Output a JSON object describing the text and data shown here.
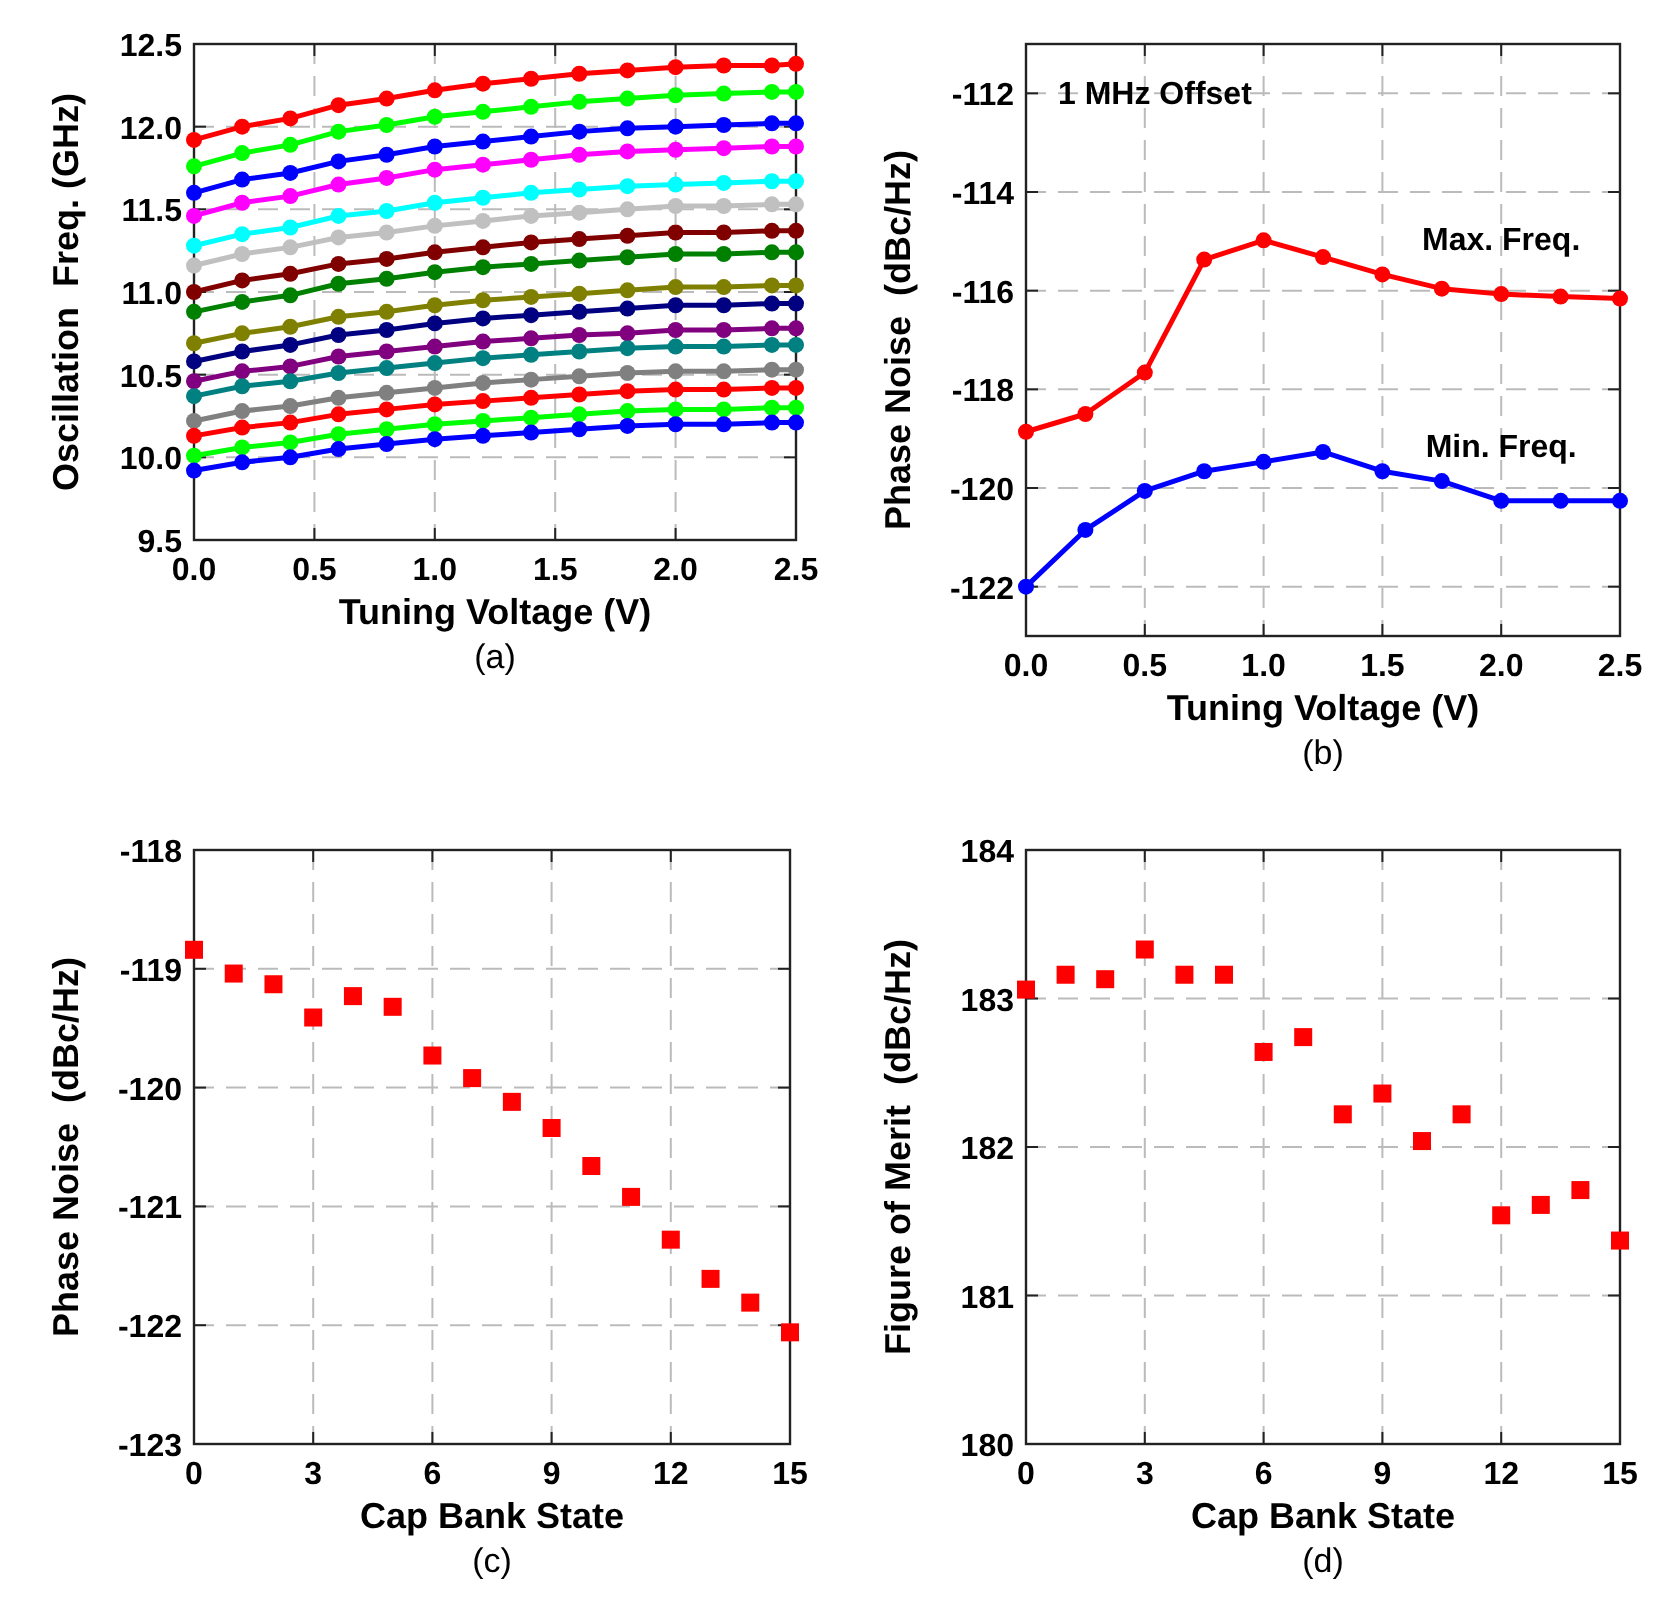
{
  "chart_data": [
    {
      "type": "line",
      "xlabel": "Tuning Voltage (V)",
      "ylabel": "Oscillation  Freq. (GHz)",
      "annotations": [
        "(a)"
      ],
      "marker": "circle",
      "grid": true,
      "xlim": [
        0,
        2.5
      ],
      "ylim": [
        9.5,
        12.5
      ],
      "xticks": [
        {
          "value": 0,
          "label": "0.0"
        },
        {
          "value": 0.5,
          "label": "0.5"
        },
        {
          "value": 1,
          "label": "1.0"
        },
        {
          "value": 1.5,
          "label": "1.5"
        },
        {
          "value": 2,
          "label": "2.0"
        },
        {
          "value": 2.5,
          "label": "2.5"
        }
      ],
      "yticks": [
        {
          "value": 9.5,
          "label": "9.5"
        },
        {
          "value": 10,
          "label": "10.0"
        },
        {
          "value": 10.5,
          "label": "10.5"
        },
        {
          "value": 11,
          "label": "11.0"
        },
        {
          "value": 11.5,
          "label": "11.5"
        },
        {
          "value": 12,
          "label": "12.0"
        },
        {
          "value": 12.5,
          "label": "12.5"
        }
      ],
      "x": [
        0,
        0.2,
        0.4,
        0.6,
        0.8,
        1.0,
        1.2,
        1.4,
        1.6,
        1.8,
        2.0,
        2.2,
        2.4,
        2.5
      ],
      "series": [
        {
          "color": "#ff0000",
          "values": [
            11.92,
            12.0,
            12.05,
            12.13,
            12.17,
            12.22,
            12.26,
            12.29,
            12.32,
            12.34,
            12.36,
            12.37,
            12.37,
            12.38
          ]
        },
        {
          "color": "#00ff00",
          "values": [
            11.76,
            11.84,
            11.89,
            11.97,
            12.01,
            12.06,
            12.09,
            12.12,
            12.15,
            12.17,
            12.19,
            12.2,
            12.21,
            12.21
          ]
        },
        {
          "color": "#0000ff",
          "values": [
            11.6,
            11.68,
            11.72,
            11.79,
            11.83,
            11.88,
            11.91,
            11.94,
            11.97,
            11.99,
            12.0,
            12.01,
            12.02,
            12.02
          ]
        },
        {
          "color": "#ff00ff",
          "values": [
            11.46,
            11.54,
            11.58,
            11.65,
            11.69,
            11.74,
            11.77,
            11.8,
            11.83,
            11.85,
            11.86,
            11.87,
            11.88,
            11.88
          ]
        },
        {
          "color": "#00ffff",
          "values": [
            11.28,
            11.35,
            11.39,
            11.46,
            11.49,
            11.54,
            11.57,
            11.6,
            11.62,
            11.64,
            11.65,
            11.66,
            11.67,
            11.67
          ]
        },
        {
          "color": "#c0c0c0",
          "values": [
            11.16,
            11.23,
            11.27,
            11.33,
            11.36,
            11.4,
            11.43,
            11.46,
            11.48,
            11.5,
            11.52,
            11.52,
            11.53,
            11.53
          ]
        },
        {
          "color": "#800000",
          "values": [
            11.0,
            11.07,
            11.11,
            11.17,
            11.2,
            11.24,
            11.27,
            11.3,
            11.32,
            11.34,
            11.36,
            11.36,
            11.37,
            11.37
          ]
        },
        {
          "color": "#008000",
          "values": [
            10.88,
            10.94,
            10.98,
            11.05,
            11.08,
            11.12,
            11.15,
            11.17,
            11.19,
            11.21,
            11.23,
            11.23,
            11.24,
            11.24
          ]
        },
        {
          "color": "#808000",
          "values": [
            10.69,
            10.75,
            10.79,
            10.85,
            10.88,
            10.92,
            10.95,
            10.97,
            10.99,
            11.01,
            11.03,
            11.03,
            11.04,
            11.04
          ]
        },
        {
          "color": "#000080",
          "values": [
            10.58,
            10.64,
            10.68,
            10.74,
            10.77,
            10.81,
            10.84,
            10.86,
            10.88,
            10.9,
            10.92,
            10.92,
            10.93,
            10.93
          ]
        },
        {
          "color": "#800080",
          "values": [
            10.46,
            10.52,
            10.55,
            10.61,
            10.64,
            10.67,
            10.7,
            10.72,
            10.74,
            10.75,
            10.77,
            10.77,
            10.78,
            10.78
          ]
        },
        {
          "color": "#008080",
          "values": [
            10.37,
            10.43,
            10.46,
            10.51,
            10.54,
            10.57,
            10.6,
            10.62,
            10.64,
            10.66,
            10.67,
            10.67,
            10.68,
            10.68
          ]
        },
        {
          "color": "#808080",
          "values": [
            10.22,
            10.28,
            10.31,
            10.36,
            10.39,
            10.42,
            10.45,
            10.47,
            10.49,
            10.51,
            10.52,
            10.52,
            10.53,
            10.53
          ]
        },
        {
          "color": "#ff0000",
          "values": [
            10.13,
            10.18,
            10.21,
            10.26,
            10.29,
            10.32,
            10.34,
            10.36,
            10.38,
            10.4,
            10.41,
            10.41,
            10.42,
            10.42
          ]
        },
        {
          "color": "#00ff00",
          "values": [
            10.01,
            10.06,
            10.09,
            10.14,
            10.17,
            10.2,
            10.22,
            10.24,
            10.26,
            10.28,
            10.29,
            10.29,
            10.3,
            10.3
          ]
        },
        {
          "color": "#0000ff",
          "values": [
            9.92,
            9.97,
            10.0,
            10.05,
            10.08,
            10.11,
            10.13,
            10.15,
            10.17,
            10.19,
            10.2,
            10.2,
            10.21,
            10.21
          ]
        }
      ]
    },
    {
      "type": "line",
      "xlabel": "Tuning Voltage (V)",
      "ylabel": "Phase Noise  (dBc/Hz)",
      "annotations": [
        "1 MHz Offset",
        "(b)"
      ],
      "marker": "circle",
      "grid": true,
      "xlim": [
        0,
        2.5
      ],
      "ylim": [
        -123,
        -111
      ],
      "xticks": [
        {
          "value": 0,
          "label": "0.0"
        },
        {
          "value": 0.5,
          "label": "0.5"
        },
        {
          "value": 1,
          "label": "1.0"
        },
        {
          "value": 1.5,
          "label": "1.5"
        },
        {
          "value": 2,
          "label": "2.0"
        },
        {
          "value": 2.5,
          "label": "2.5"
        }
      ],
      "yticks": [
        -122,
        -120,
        -118,
        -116,
        -114,
        -112
      ],
      "x": [
        0,
        0.25,
        0.5,
        0.75,
        1.0,
        1.25,
        1.5,
        1.75,
        2.0,
        2.25,
        2.5
      ],
      "series": [
        {
          "name": "Max. Freq.",
          "color": "#ff0000",
          "values": [
            -118.86,
            -118.5,
            -117.66,
            -115.37,
            -114.98,
            -115.32,
            -115.67,
            -115.96,
            -116.07,
            -116.12,
            -116.16
          ]
        },
        {
          "name": "Min. Freq.",
          "color": "#0000ff",
          "values": [
            -122.0,
            -120.85,
            -120.06,
            -119.66,
            -119.47,
            -119.27,
            -119.66,
            -119.86,
            -120.26,
            -120.26,
            -120.26
          ]
        }
      ]
    },
    {
      "type": "scatter",
      "xlabel": "Cap Bank State",
      "ylabel": "Phase Noise  (dBc/Hz)",
      "annotations": [
        "(c)"
      ],
      "marker": "square",
      "grid": true,
      "xlim": [
        0,
        15
      ],
      "ylim": [
        -123,
        -118
      ],
      "xticks": [
        0,
        3,
        6,
        9,
        12,
        15
      ],
      "yticks": [
        -123,
        -122,
        -121,
        -120,
        -119,
        -118
      ],
      "x": [
        0,
        1,
        2,
        3,
        4,
        5,
        6,
        7,
        8,
        9,
        10,
        11,
        12,
        13,
        14,
        15
      ],
      "series": [
        {
          "color": "#ff0000",
          "values": [
            -118.84,
            -119.04,
            -119.13,
            -119.41,
            -119.23,
            -119.32,
            -119.73,
            -119.92,
            -120.12,
            -120.34,
            -120.66,
            -120.92,
            -121.28,
            -121.61,
            -121.81,
            -122.06
          ]
        }
      ]
    },
    {
      "type": "scatter",
      "xlabel": "Cap Bank State",
      "ylabel": "Figure of Merit  (dBc/Hz)",
      "annotations": [
        "(d)"
      ],
      "marker": "square",
      "grid": true,
      "xlim": [
        0,
        15
      ],
      "ylim": [
        180,
        184
      ],
      "xticks": [
        0,
        3,
        6,
        9,
        12,
        15
      ],
      "yticks": [
        180,
        181,
        182,
        183,
        184
      ],
      "x": [
        0,
        1,
        2,
        3,
        4,
        5,
        6,
        7,
        8,
        9,
        10,
        11,
        12,
        13,
        14,
        15
      ],
      "series": [
        {
          "color": "#ff0000",
          "values": [
            183.06,
            183.16,
            183.13,
            183.33,
            183.16,
            183.16,
            182.64,
            182.74,
            182.22,
            182.36,
            182.04,
            182.22,
            181.54,
            181.61,
            181.71,
            181.37
          ]
        }
      ]
    }
  ]
}
